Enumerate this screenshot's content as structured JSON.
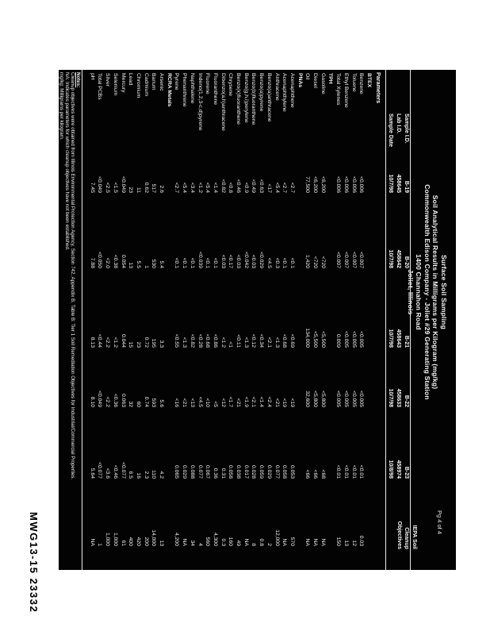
{
  "stamp": "MWG13-15 23332",
  "page_label": "Pg 4 of 4",
  "colors": {
    "scan_background": "#030303",
    "scan_text": "#f5f5f5",
    "page_background": "#ffffff"
  },
  "title": {
    "lines": [
      "Surface Soil Sampling",
      "Soil Analytical Results in Milligrams per Kilogram (mg/kg)",
      "Commonwealth Edison Company - Joliet #29 Generating Station",
      "1400 Channahon Road",
      "Joliet, Illinois"
    ]
  },
  "header": {
    "parameters_label": "Parameters",
    "row_labels": [
      "Sample I.D.",
      "Lab I.D.",
      "Sample Date"
    ],
    "columns": [
      {
        "sample_id": "B-19",
        "lab_id": "458645",
        "sample_date": "10/7/98"
      },
      {
        "sample_id": "B-20",
        "lab_id": "458642",
        "sample_date": "10/7/98"
      },
      {
        "sample_id": "B-21",
        "lab_id": "458643",
        "sample_date": "10/7/98"
      },
      {
        "sample_id": "B-22",
        "lab_id": "458633",
        "sample_date": "10/7/98"
      },
      {
        "sample_id": "B-23",
        "lab_id": "458974",
        "sample_date": "10/8/98"
      }
    ],
    "epa_column": {
      "header_lines": [
        "IEPA Soil",
        "Cleanup",
        "Objectives"
      ]
    }
  },
  "rows": [
    {
      "label": "BTEX",
      "section": true,
      "values": [
        "",
        "",
        "",
        "",
        "",
        ""
      ]
    },
    {
      "label": "Benzene",
      "values": [
        "<0.006",
        "<0.007",
        "<0.005",
        "<0.005",
        "<0.01",
        "0.03"
      ]
    },
    {
      "label": "Toluene",
      "values": [
        "<0.006",
        "<0.007",
        "<0.005",
        "<0.005",
        "<0.01",
        "12"
      ]
    },
    {
      "label": "Ethyl Benzene",
      "values": [
        "<0.006",
        "<0.007",
        "<0.005",
        "<0.005",
        "<0.01",
        "13"
      ]
    },
    {
      "label": "Total Xylenes",
      "values": [
        "<0.006",
        "<0.007",
        "0.009",
        "<0.005",
        "<0.01",
        "150"
      ]
    },
    {
      "label": "TPH",
      "section": true,
      "values": [
        "",
        "",
        "",
        "",
        "",
        ""
      ]
    },
    {
      "label": "Gasoline",
      "values": [
        "<6,200",
        "<720",
        "<5,500",
        "<5,800",
        "<68",
        "NA"
      ]
    },
    {
      "label": "Diesel",
      "values": [
        "<6,200",
        "<720",
        "<5,500",
        "<5,800",
        "<66",
        "NA"
      ]
    },
    {
      "label": "Oil",
      "values": [
        "77,500",
        "1,420",
        "134,000",
        "32,600",
        "<66",
        "NA"
      ]
    },
    {
      "label": "PNAs",
      "section": true,
      "values": [
        "",
        "",
        "",
        "",
        "",
        ""
      ]
    },
    {
      "label": "Acenaphthene",
      "values": [
        "<2.7",
        "<0.1",
        "<0.69",
        "<19",
        "0.053",
        "570"
      ]
    },
    {
      "label": "Acenaphthylene",
      "values": [
        "<2.7",
        "<0.1",
        "<0.68",
        "<19",
        "0.058",
        "NA"
      ]
    },
    {
      "label": "Anthracene",
      "values": [
        "<5.4",
        "<0.3",
        "<1.3",
        "<21",
        "0.077",
        "12,000"
      ]
    },
    {
      "label": "Benzo(a)anthracene",
      "values": [
        "<17",
        "<4.5",
        "<2.1",
        "<2.4",
        "0.029",
        "2"
      ]
    },
    {
      "label": "Benzo(a)pyrene",
      "values": [
        "<0.63",
        "<0.029",
        "<0.34",
        "<1.4",
        "0.059",
        "0.8"
      ]
    },
    {
      "label": "Benzo(b)fluoranthene",
      "values": [
        "<0.49",
        "<0.03",
        "<0.12",
        "<2.1",
        "0.028",
        "8"
      ]
    },
    {
      "label": "Benzo(g,h,i)perylene",
      "values": [
        "<0.9",
        "<0.042",
        "<1.3",
        "<1.9",
        "0.017",
        "NA"
      ]
    },
    {
      "label": "Benzo(k)fluoranthene",
      "values": [
        "<0.46",
        "<0.03",
        "<0.11",
        "<21",
        "0.038",
        "49"
      ]
    },
    {
      "label": "Chrysene",
      "values": [
        "<0.8",
        "<0.17",
        "<1",
        "<1.7",
        "0.058",
        "160"
      ]
    },
    {
      "label": "Dibenzo(a,h)anthracene",
      "values": [
        "<0.82",
        "<0.03",
        "<1.2",
        "<12",
        "0.31",
        "0.3"
      ]
    },
    {
      "label": "Fluoranthene",
      "values": [
        "<1.4",
        "<0.1",
        "<0.86",
        "<5",
        "0.36",
        "4,300"
      ]
    },
    {
      "label": "Fluorene",
      "values": [
        "<5.4",
        "<0.1",
        "<0.68",
        "<10",
        "0.067",
        "560"
      ]
    },
    {
      "label": "Indeno(1,2,3-c,d)pyrene",
      "values": [
        "<1.2",
        "<0.039",
        "<0.28",
        "<4.5",
        "0.077",
        "4"
      ]
    },
    {
      "label": "Naphthalene",
      "values": [
        "<3.4",
        "<0.1",
        "<0.82",
        "<13",
        "0.088",
        "34"
      ]
    },
    {
      "label": "Phenanthrene",
      "values": [
        "<5.4",
        "<0.1",
        "<1.3",
        "<21",
        "0.029",
        "NA"
      ]
    },
    {
      "label": "Pyrene",
      "values": [
        "<2.7",
        "<0.1",
        "<0.55",
        "<16",
        "0.065",
        "4,200"
      ]
    },
    {
      "label": "RCRA Metals",
      "section": true,
      "values": [
        "",
        "",
        "",
        "",
        "",
        ""
      ]
    },
    {
      "label": "Arsenic",
      "values": [
        "2.6",
        "5.4",
        "3.3",
        "5.6",
        "4.2",
        "13"
      ]
    },
    {
      "label": "Barium",
      "values": [
        "517",
        "530",
        "195",
        "593",
        "110",
        "14,000"
      ]
    },
    {
      "label": "Cadmium",
      "values": [
        "0.62",
        "1",
        "0.72",
        "0.74",
        "2.3",
        "200"
      ]
    },
    {
      "label": "Chromium",
      "values": [
        "11",
        "5.5",
        "23",
        "60",
        "16",
        "420"
      ]
    },
    {
      "label": "Lead",
      "values": [
        "23",
        "13",
        "15",
        "32",
        "6.5",
        "400"
      ]
    },
    {
      "label": "Mercury",
      "values": [
        "<0.049",
        "0.054",
        "0.044",
        "0.063",
        "<0.077",
        "61"
      ]
    },
    {
      "label": "Selenium",
      "values": [
        "<1.5",
        "<0.38",
        "<1.2",
        "<0.36",
        "<0.46",
        "1,000"
      ]
    },
    {
      "label": "Silver",
      "values": [
        "<2.5",
        "<2.0",
        "<2.2",
        "<2.2",
        "<3.6",
        "1,000"
      ]
    },
    {
      "label": "Total PCBs",
      "values": [
        "<0.049",
        "<0.050",
        "<0.44",
        "<0.049",
        "<0.077",
        "1"
      ]
    },
    {
      "label": "pH",
      "values": [
        "7.45",
        "7.88",
        "8.13",
        "8.10",
        "5.64",
        "NA"
      ]
    }
  ],
  "notes": {
    "title": "Notes:",
    "lines": [
      "Cleanup objectives were obtained from Illinois Environmental Protection Agency, Section 742, Appendix B, Table B: Tier 1 Soil Remediation Objectives for Industrial/Commercial Properties.",
      "NA: Indicates parameters for which cleanup objectives have not been established.",
      "mg/kg: Milligrams per kilogram."
    ]
  }
}
